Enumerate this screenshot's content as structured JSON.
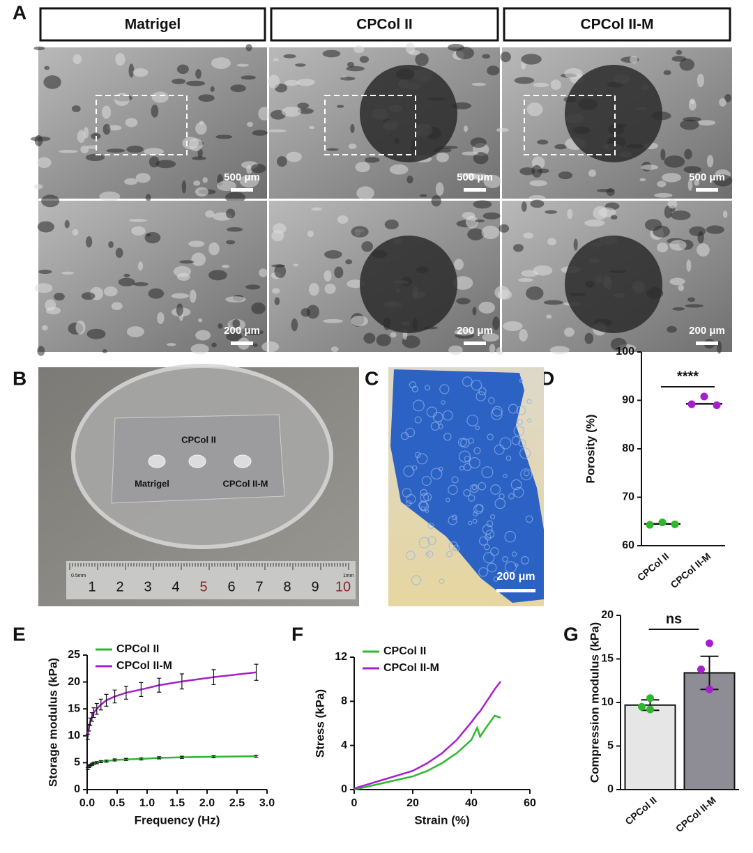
{
  "panels": {
    "letters": [
      "A",
      "B",
      "C",
      "D",
      "E",
      "F",
      "G"
    ],
    "A": {
      "headers": [
        "Matrigel",
        "CPCol II",
        "CPCol II-M"
      ],
      "scale_top": [
        "500 μm",
        "500 μm",
        "500 μm"
      ],
      "scale_bottom": [
        "200 μm",
        "200 μm",
        "200 μm"
      ]
    },
    "B": {
      "labels": [
        "CPCol II",
        "Matrigel",
        "CPCol II-M"
      ],
      "ruler": [
        "1",
        "2",
        "3",
        "4",
        "5",
        "6",
        "7",
        "8",
        "9",
        "10"
      ],
      "ruler_small": [
        "0.5mm",
        "1mm"
      ]
    },
    "C": {
      "scale": "200 μm"
    }
  },
  "chart_data": [
    {
      "type": "dot",
      "ylabel": "Porosity (%)",
      "categories": [
        "CPCol II",
        "CPCol II-M"
      ],
      "points": [
        [
          64.3,
          64.8,
          64.4
        ],
        [
          89.2,
          90.8,
          89.0
        ]
      ],
      "means": [
        64.5,
        89.3
      ],
      "colors": [
        "#2db82d",
        "#a51fcf"
      ],
      "annotation": "****",
      "ylim": [
        60,
        100
      ],
      "yticks": [
        60,
        70,
        80,
        90,
        100
      ]
    },
    {
      "type": "line",
      "xlabel": "Frequency (Hz)",
      "ylabel": "Storage modulus (kPa)",
      "x": [
        0.01,
        0.03,
        0.05,
        0.08,
        0.11,
        0.16,
        0.23,
        0.32,
        0.46,
        0.65,
        0.9,
        1.2,
        1.58,
        2.11,
        2.82
      ],
      "series": [
        {
          "name": "CPCol II",
          "color": "#2db82d",
          "values": [
            3.9,
            4.3,
            4.5,
            4.7,
            4.9,
            5.0,
            5.2,
            5.3,
            5.5,
            5.6,
            5.7,
            5.9,
            6.0,
            6.1,
            6.2
          ],
          "errors": [
            0.2,
            0.2,
            0.2,
            0.2,
            0.2,
            0.2,
            0.2,
            0.2,
            0.2,
            0.2,
            0.2,
            0.2,
            0.2,
            0.2,
            0.2
          ]
        },
        {
          "name": "CPCol II-M",
          "color": "#a51fcf",
          "values": [
            9.8,
            11.5,
            12.6,
            13.5,
            14.3,
            15.0,
            15.8,
            16.6,
            17.3,
            18.0,
            18.6,
            19.4,
            20.1,
            20.9,
            21.8
          ],
          "errors": [
            0.5,
            0.6,
            0.7,
            0.8,
            0.9,
            1.0,
            1.0,
            1.1,
            1.2,
            1.2,
            1.3,
            1.3,
            1.4,
            1.4,
            1.5
          ]
        }
      ],
      "xlim": [
        0,
        3
      ],
      "xticks": [
        {
          "value": 0,
          "label": "0.0"
        },
        {
          "value": 0.5,
          "label": "0.5"
        },
        {
          "value": 1,
          "label": "1.0"
        },
        {
          "value": 1.5,
          "label": "1.5"
        },
        {
          "value": 2,
          "label": "2.0"
        },
        {
          "value": 2.5,
          "label": "2.5"
        },
        {
          "value": 3,
          "label": "3.0"
        }
      ],
      "ylim": [
        0,
        25
      ],
      "yticks": [
        0,
        5,
        10,
        15,
        20,
        25
      ]
    },
    {
      "type": "line",
      "xlabel": "Strain (%)",
      "ylabel": "Stress (kPa)",
      "x": [
        0,
        5,
        10,
        15,
        20,
        25,
        30,
        35,
        40,
        42,
        43,
        45,
        48,
        50
      ],
      "series": [
        {
          "name": "CPCol II",
          "color": "#2db82d",
          "values": [
            0,
            0.3,
            0.6,
            0.9,
            1.2,
            1.7,
            2.4,
            3.3,
            4.5,
            5.6,
            4.8,
            5.6,
            6.7,
            6.5
          ]
        },
        {
          "name": "CPCol II-M",
          "color": "#a51fcf",
          "values": [
            0.1,
            0.5,
            0.9,
            1.3,
            1.7,
            2.4,
            3.3,
            4.5,
            6.1,
            6.8,
            7.1,
            7.9,
            9.1,
            9.8
          ]
        }
      ],
      "xlim": [
        0,
        60
      ],
      "xticks": [
        0,
        20,
        40,
        60
      ],
      "ylim": [
        0,
        12
      ],
      "yticks": [
        0,
        4,
        8,
        12
      ]
    },
    {
      "type": "bar",
      "ylabel": "Compression modulus (kPa)",
      "categories": [
        "CPCol II",
        "CPCol II-M"
      ],
      "values": [
        9.7,
        13.4
      ],
      "errors": [
        0.6,
        1.9
      ],
      "colors": [
        "#e6e6e6",
        "#8e8d95"
      ],
      "points": [
        [
          10.5,
          9.5,
          9.2
        ],
        [
          16.8,
          13.8,
          11.5
        ]
      ],
      "point_colors": [
        "#2db82d",
        "#a51fcf"
      ],
      "annotation": "ns",
      "ylim": [
        0,
        20
      ],
      "yticks": [
        0,
        5,
        10,
        15,
        20
      ]
    }
  ]
}
